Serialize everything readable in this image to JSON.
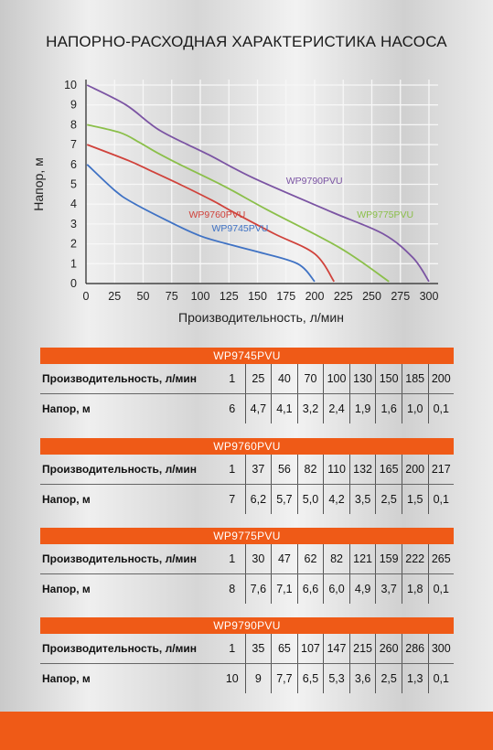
{
  "title": "НАПОРНО-РАСХОДНАЯ ХАРАКТЕРИСТИКА НАСОСА",
  "chart_data": {
    "type": "line",
    "xlabel": "Производительность, л/мин",
    "ylabel": "Напор, м",
    "xlim": [
      0,
      300
    ],
    "ylim": [
      0,
      10
    ],
    "xticks": [
      0,
      25,
      50,
      75,
      100,
      125,
      150,
      175,
      200,
      225,
      250,
      275,
      300
    ],
    "yticks": [
      0,
      1,
      2,
      3,
      4,
      5,
      6,
      7,
      8,
      9,
      10
    ],
    "grid": true,
    "series": [
      {
        "name": "WP9745PVU",
        "color": "#3f72c4",
        "x": [
          1,
          25,
          40,
          70,
          100,
          130,
          150,
          185,
          200
        ],
        "y": [
          6,
          4.7,
          4.1,
          3.2,
          2.4,
          1.9,
          1.6,
          1.0,
          0.1
        ]
      },
      {
        "name": "WP9760PVU",
        "color": "#d0423b",
        "x": [
          1,
          37,
          56,
          82,
          110,
          132,
          165,
          200,
          217
        ],
        "y": [
          7,
          6.2,
          5.7,
          5.0,
          4.2,
          3.5,
          2.5,
          1.5,
          0.1
        ]
      },
      {
        "name": "WP9775PVU",
        "color": "#8bbf4a",
        "x": [
          1,
          30,
          47,
          62,
          82,
          121,
          159,
          222,
          265
        ],
        "y": [
          8,
          7.6,
          7.1,
          6.6,
          6.0,
          4.9,
          3.7,
          1.8,
          0.1
        ]
      },
      {
        "name": "WP9790PVU",
        "color": "#7b54a3",
        "x": [
          1,
          35,
          65,
          107,
          147,
          215,
          260,
          286,
          300
        ],
        "y": [
          10,
          9,
          7.7,
          6.5,
          5.3,
          3.6,
          2.5,
          1.3,
          0.1
        ]
      }
    ]
  },
  "tables": [
    {
      "name": "WP9745PVU",
      "flow_label": "Производительность, л/мин",
      "head_label": "Напор, м",
      "flow": [
        "1",
        "25",
        "40",
        "70",
        "100",
        "130",
        "150",
        "185",
        "200"
      ],
      "head": [
        "6",
        "4,7",
        "4,1",
        "3,2",
        "2,4",
        "1,9",
        "1,6",
        "1,0",
        "0,1"
      ]
    },
    {
      "name": "WP9760PVU",
      "flow_label": "Производительность, л/мин",
      "head_label": "Напор, м",
      "flow": [
        "1",
        "37",
        "56",
        "82",
        "110",
        "132",
        "165",
        "200",
        "217"
      ],
      "head": [
        "7",
        "6,2",
        "5,7",
        "5,0",
        "4,2",
        "3,5",
        "2,5",
        "1,5",
        "0,1"
      ]
    },
    {
      "name": "WP9775PVU",
      "flow_label": "Производительность, л/мин",
      "head_label": "Напор, м",
      "flow": [
        "1",
        "30",
        "47",
        "62",
        "82",
        "121",
        "159",
        "222",
        "265"
      ],
      "head": [
        "8",
        "7,6",
        "7,1",
        "6,6",
        "6,0",
        "4,9",
        "3,7",
        "1,8",
        "0,1"
      ]
    },
    {
      "name": "WP9790PVU",
      "flow_label": "Производительность, л/мин",
      "head_label": "Напор, м",
      "flow": [
        "1",
        "35",
        "65",
        "107",
        "147",
        "215",
        "260",
        "286",
        "300"
      ],
      "head": [
        "10",
        "9",
        "7,7",
        "6,5",
        "5,3",
        "3,6",
        "2,5",
        "1,3",
        "0,1"
      ]
    }
  ]
}
